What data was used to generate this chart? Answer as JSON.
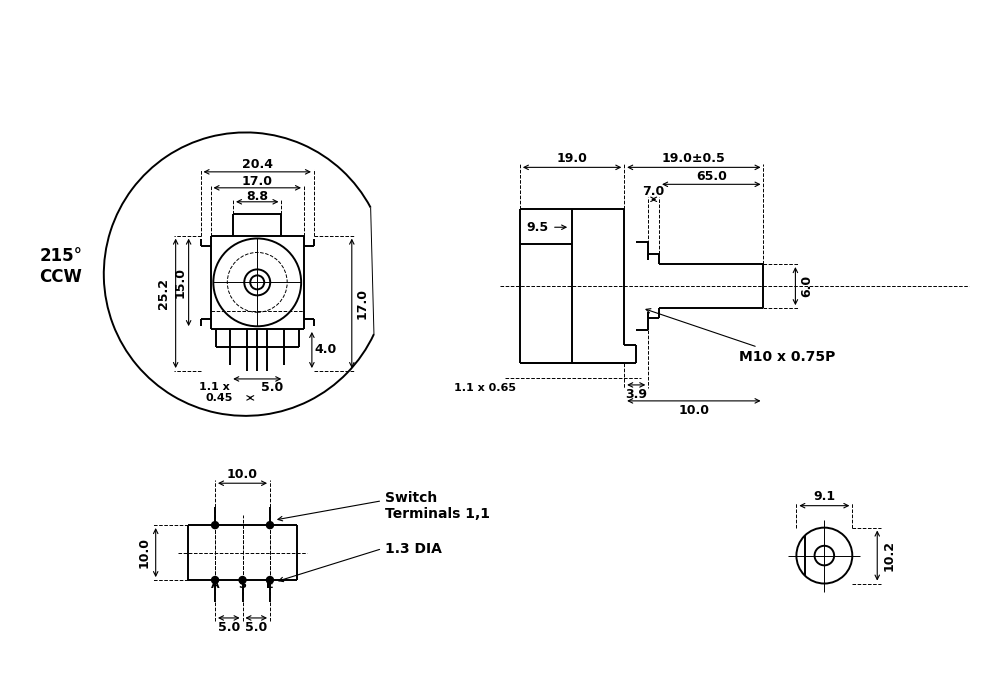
{
  "bg_color": "#ffffff",
  "line_color": "#000000",
  "lw": 1.4,
  "thin_lw": 0.7,
  "font_size": 9,
  "bold_font_size": 10,
  "labels": {
    "20_4": "20.4",
    "17_0": "17.0",
    "8_8": "8.8",
    "25_2": "25.2",
    "15_0": "15.0",
    "17_0_r": "17.0",
    "1_1x": "1.1 x",
    "0_45": "0.45",
    "5_0": "5.0",
    "4_0": "4.0",
    "1_1x065": "1.1 x 0.65",
    "3_9": "3.9",
    "10_0b": "10.0",
    "19_0": "19.0",
    "19_0pm05": "19.0±0.5",
    "9_5": "9.5",
    "7_0": "7.0",
    "65_0": "65.0",
    "6_0": "6.0",
    "m10": "M10 x 0.75P",
    "10_0_side": "10.0",
    "10_0_bt": "10.0",
    "5_0_l": "5.0",
    "5_0_r": "5.0",
    "switch": "Switch\nTerminals 1,1",
    "1_3dia": "1.3 DIA",
    "9_1": "9.1",
    "10_2": "10.2",
    "215": "215°\nCCW"
  }
}
